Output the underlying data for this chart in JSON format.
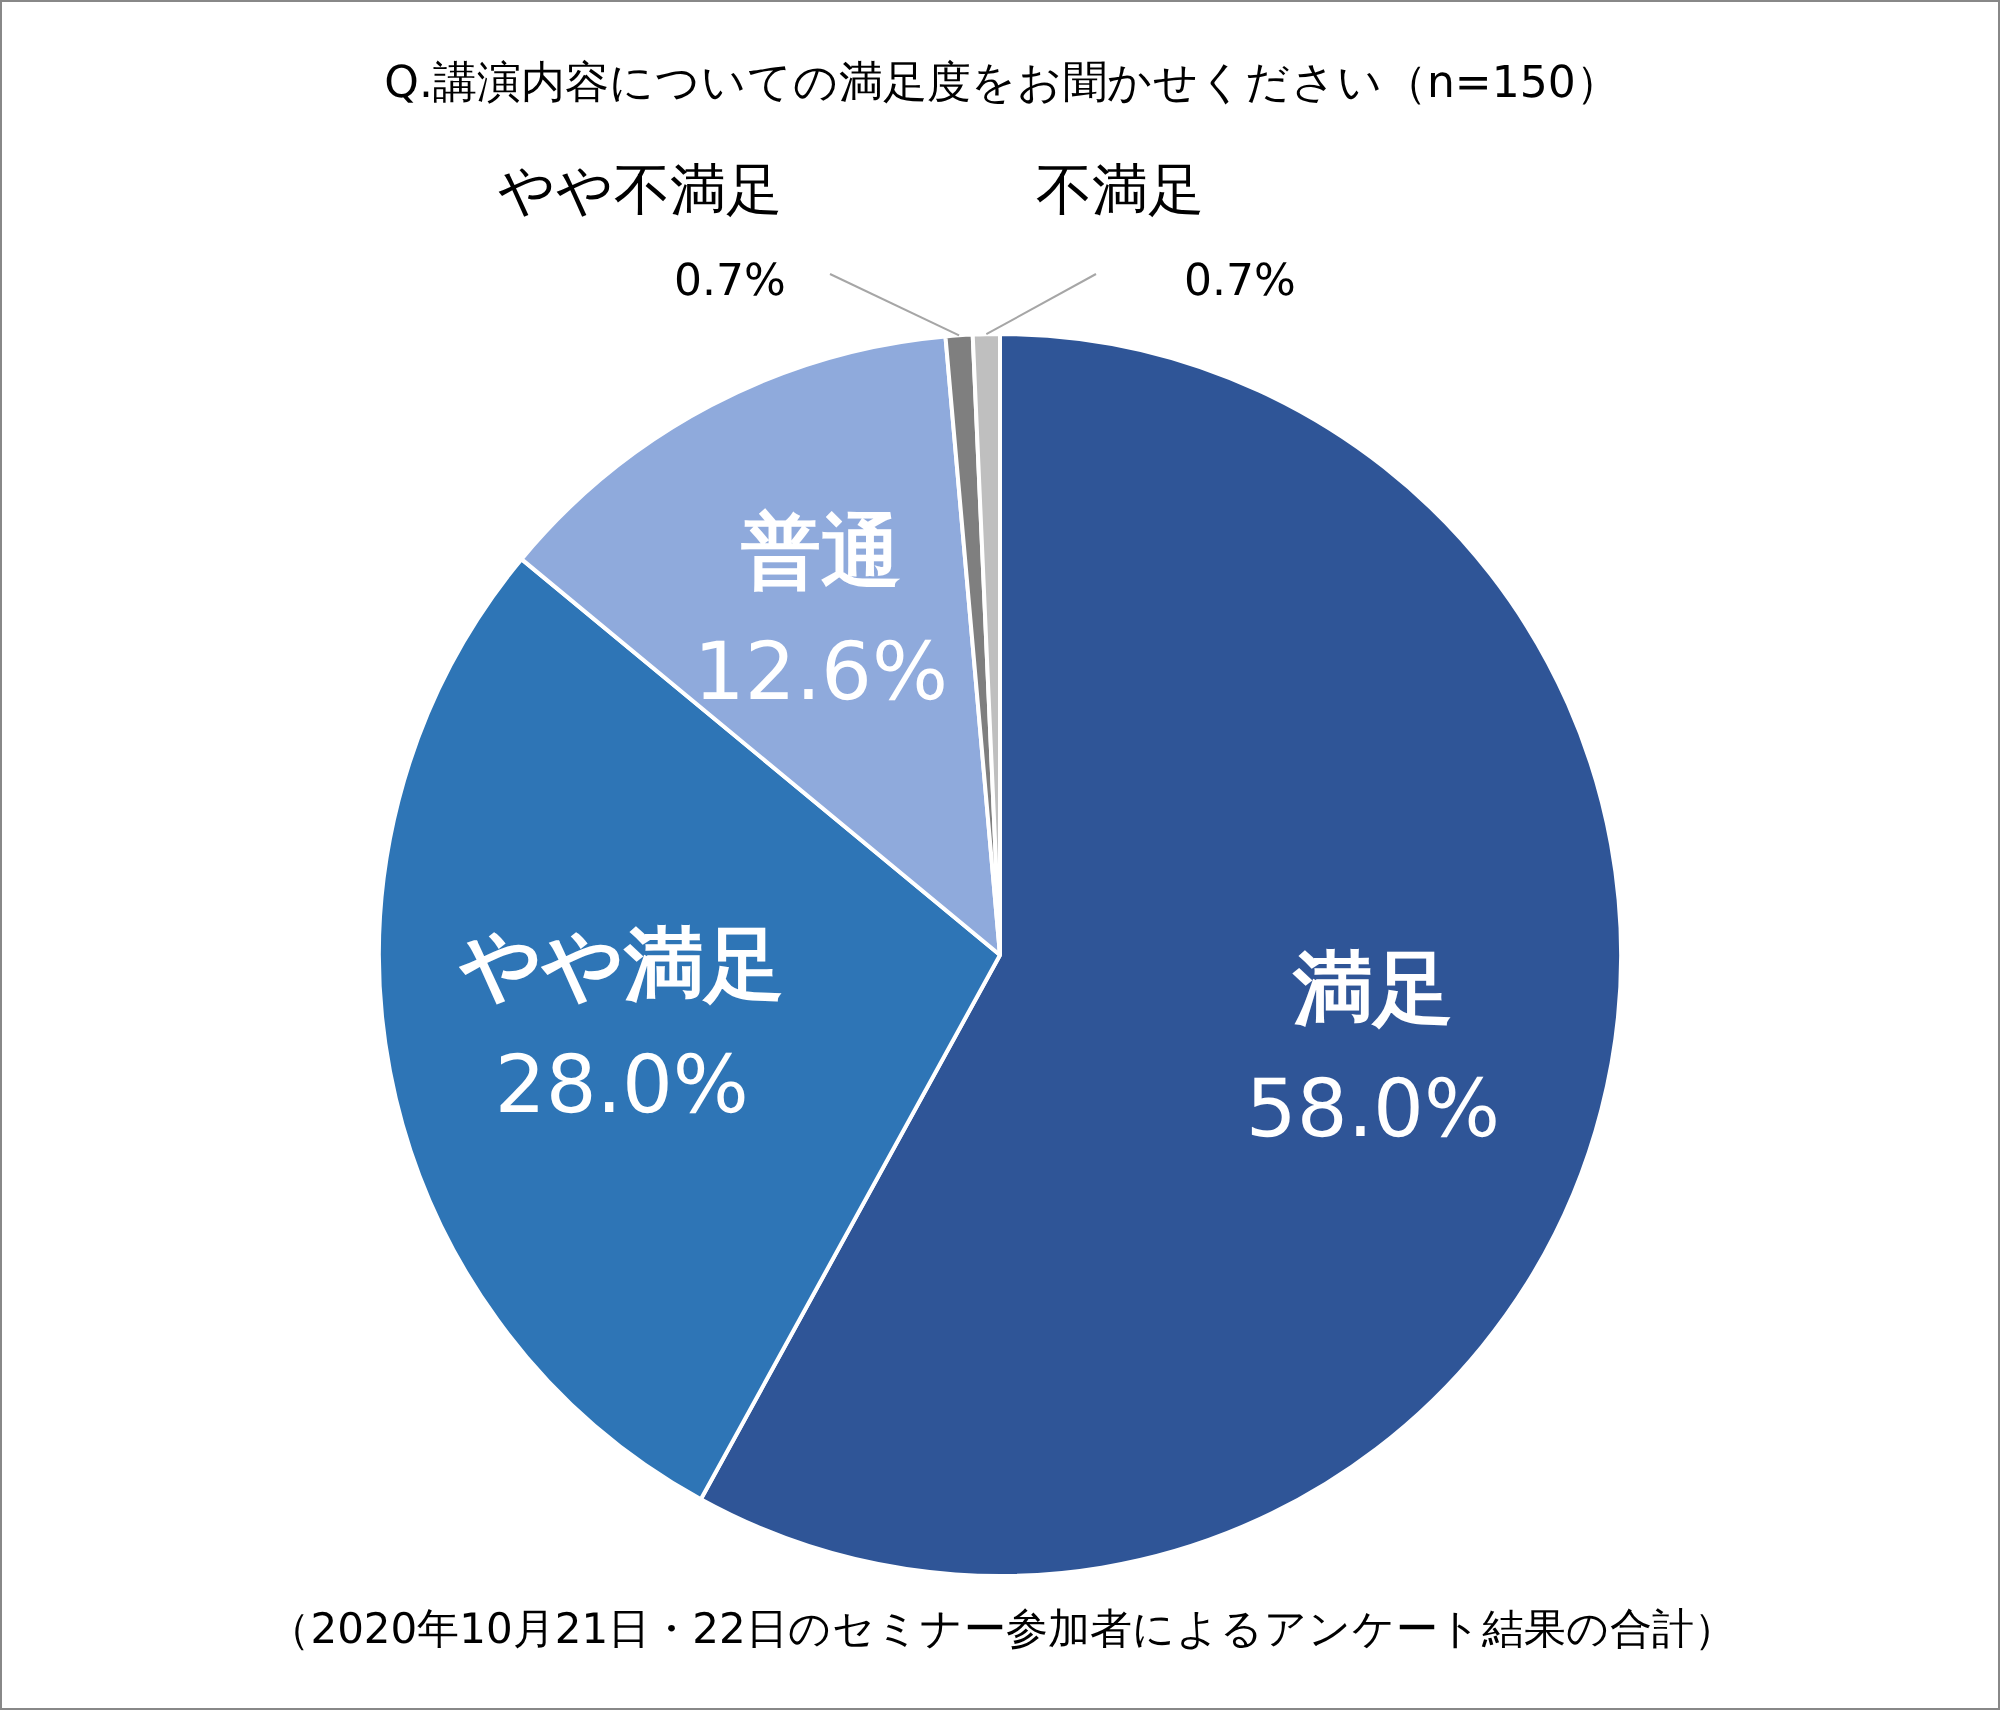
{
  "chart_data": {
    "type": "pie",
    "title": "Q.講演内容についての満足度をお聞かせください（n=150）",
    "categories": [
      "満足",
      "やや満足",
      "普通",
      "やや不満足",
      "不満足"
    ],
    "values": [
      58.0,
      28.0,
      12.6,
      0.7,
      0.7
    ],
    "value_labels": [
      "58.0%",
      "28.0%",
      "12.6%",
      "0.7%",
      "0.7%"
    ],
    "colors": [
      "#2f5597",
      "#2e75b6",
      "#8faadc",
      "#7f7f7f",
      "#bfbfbf"
    ],
    "annotations": [
      "（2020年10月21日・22日のセミナー参加者によるアンケート結果の合計）"
    ],
    "legend": false
  }
}
